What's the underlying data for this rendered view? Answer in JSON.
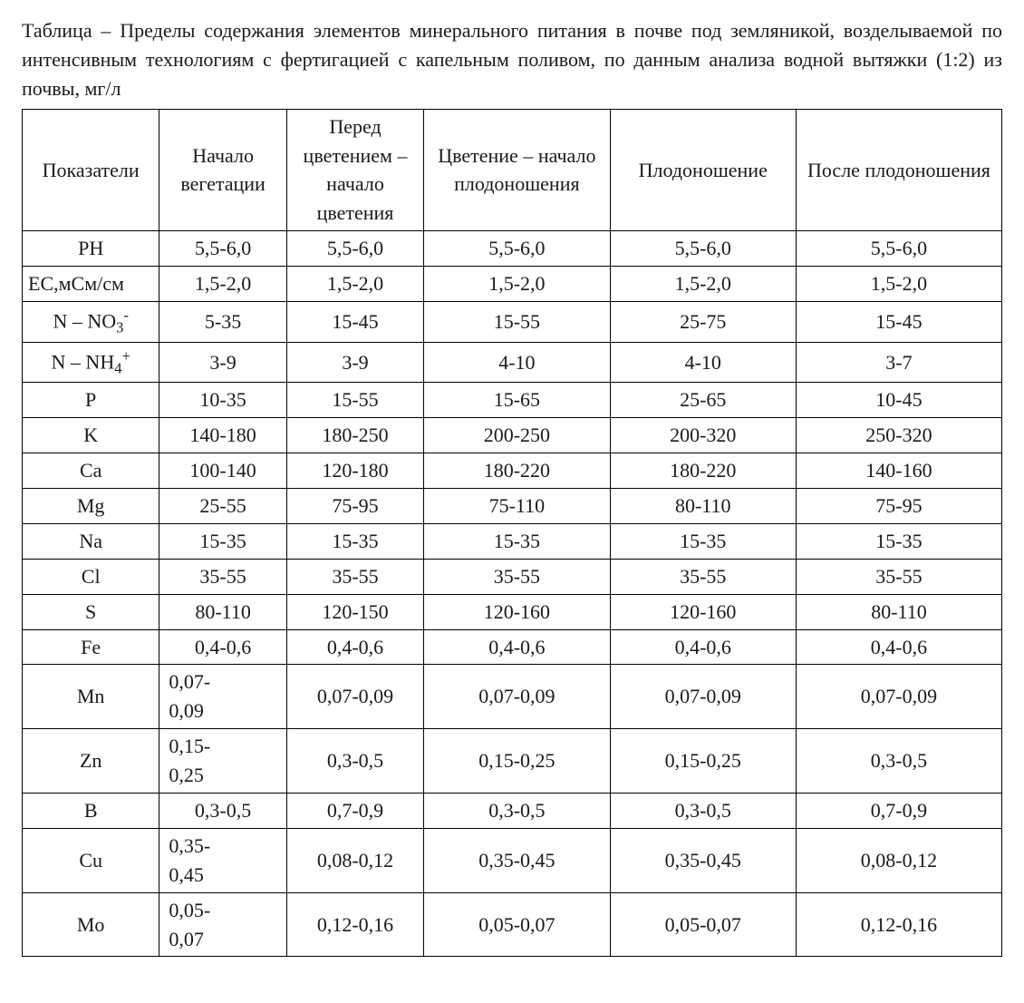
{
  "caption": "Таблица – Пределы содержания элементов минерального питания в почве под земляникой, возделываемой по интенсивным технологиям с фертигацией с капельным поливом, по данным анализа водной вытяжки (1:2) из почвы, мг/л",
  "table": {
    "type": "table",
    "border_color": "#000000",
    "background_color": "#ffffff",
    "font_family": "Times New Roman",
    "font_size_pt": 16,
    "columns": [
      "Показатели",
      "Начало вегетации",
      "Перед цветением – начало цветения",
      "Цветение – начало плодоношения",
      "Плодоношение",
      "После плодоношения"
    ],
    "col_widths_pct": [
      14,
      13,
      14,
      19,
      19,
      21
    ],
    "rows": [
      {
        "label": "PH",
        "label_html": "PH",
        "label_align": "center",
        "vals": [
          "5,5-6,0",
          "5,5-6,0",
          "5,5-6,0",
          "5,5-6,0",
          "5,5-6,0"
        ],
        "narrow_first": false
      },
      {
        "label": "EC,мСм/см",
        "label_html": "EC,мСм/см",
        "label_align": "left",
        "vals": [
          "1,5-2,0",
          "1,5-2,0",
          "1,5-2,0",
          "1,5-2,0",
          "1,5-2,0"
        ],
        "narrow_first": false
      },
      {
        "label": "N – NO3-",
        "label_html": "N – NO<span class=\"chem-sub\">3</span><span class=\"chem-sup\">-</span>",
        "label_align": "center",
        "vals": [
          "5-35",
          "15-45",
          "15-55",
          "25-75",
          "15-45"
        ],
        "narrow_first": false
      },
      {
        "label": "N – NH4+",
        "label_html": "N – NH<span class=\"chem-sub\">4</span><span class=\"chem-sup\">+</span>",
        "label_align": "center",
        "vals": [
          "3-9",
          "3-9",
          "4-10",
          "4-10",
          "3-7"
        ],
        "narrow_first": false
      },
      {
        "label": "P",
        "label_html": "P",
        "label_align": "center",
        "vals": [
          "10-35",
          "15-55",
          "15-65",
          "25-65",
          "10-45"
        ],
        "narrow_first": false
      },
      {
        "label": "K",
        "label_html": "K",
        "label_align": "center",
        "vals": [
          "140-180",
          "180-250",
          "200-250",
          "200-320",
          "250-320"
        ],
        "narrow_first": false
      },
      {
        "label": "Ca",
        "label_html": "Ca",
        "label_align": "center",
        "vals": [
          "100-140",
          "120-180",
          "180-220",
          "180-220",
          "140-160"
        ],
        "narrow_first": false
      },
      {
        "label": "Mg",
        "label_html": "Mg",
        "label_align": "center",
        "vals": [
          "25-55",
          "75-95",
          "75-110",
          "80-110",
          "75-95"
        ],
        "narrow_first": false
      },
      {
        "label": "Na",
        "label_html": "Na",
        "label_align": "center",
        "vals": [
          "15-35",
          "15-35",
          "15-35",
          "15-35",
          "15-35"
        ],
        "narrow_first": false
      },
      {
        "label": "Cl",
        "label_html": "Cl",
        "label_align": "center",
        "vals": [
          "35-55",
          "35-55",
          "35-55",
          "35-55",
          "35-55"
        ],
        "narrow_first": false
      },
      {
        "label": "S",
        "label_html": "S",
        "label_align": "center",
        "vals": [
          "80-110",
          "120-150",
          "120-160",
          "120-160",
          "80-110"
        ],
        "narrow_first": false
      },
      {
        "label": "Fe",
        "label_html": "Fe",
        "label_align": "center",
        "vals": [
          "0,4-0,6",
          "0,4-0,6",
          "0,4-0,6",
          "0,4-0,6",
          "0,4-0,6"
        ],
        "narrow_first": false
      },
      {
        "label": "Mn",
        "label_html": "Mn",
        "label_align": "center",
        "vals": [
          "0,07-0,09",
          "0,07-0,09",
          "0,07-0,09",
          "0,07-0,09",
          "0,07-0,09"
        ],
        "narrow_first": true
      },
      {
        "label": "Zn",
        "label_html": "Zn",
        "label_align": "center",
        "vals": [
          "0,15-0,25",
          "0,3-0,5",
          "0,15-0,25",
          "0,15-0,25",
          "0,3-0,5"
        ],
        "narrow_first": true
      },
      {
        "label": "B",
        "label_html": "B",
        "label_align": "center",
        "vals": [
          "0,3-0,5",
          "0,7-0,9",
          "0,3-0,5",
          "0,3-0,5",
          "0,7-0,9"
        ],
        "narrow_first": false
      },
      {
        "label": "Cu",
        "label_html": "Cu",
        "label_align": "center",
        "vals": [
          "0,35-0,45",
          "0,08-0,12",
          "0,35-0,45",
          "0,35-0,45",
          "0,08-0,12"
        ],
        "narrow_first": true
      },
      {
        "label": "Mo",
        "label_html": "Mo",
        "label_align": "center",
        "vals": [
          "0,05-0,07",
          "0,12-0,16",
          "0,05-0,07",
          "0,05-0,07",
          "0,12-0,16"
        ],
        "narrow_first": true
      }
    ]
  }
}
